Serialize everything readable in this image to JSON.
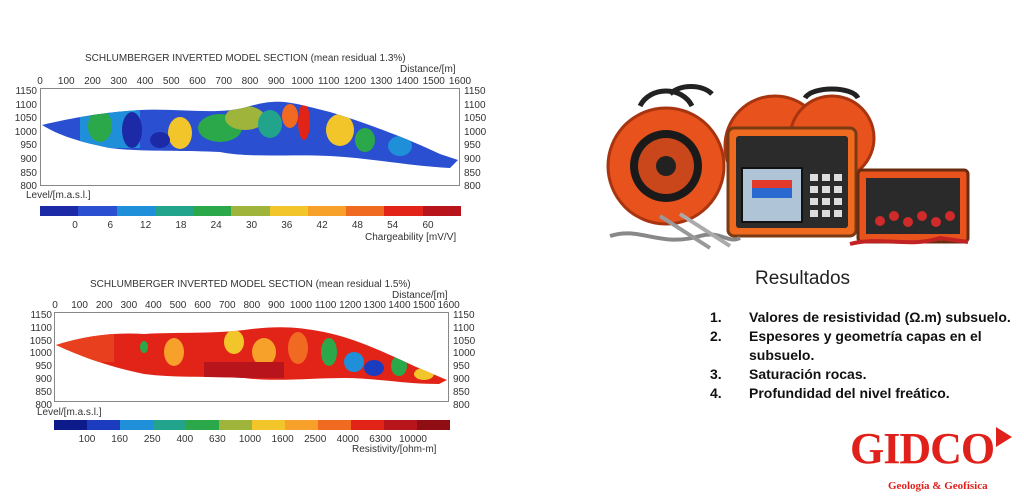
{
  "top_section": {
    "title": "SCHLUMBERGER INVERTED MODEL SECTION (mean residual 1.3%)",
    "distance_label": "Distance/[m]",
    "x_ticks": [
      "0",
      "100",
      "200",
      "300",
      "400",
      "500",
      "600",
      "700",
      "800",
      "900",
      "1000",
      "1100",
      "1200",
      "1300",
      "1400",
      "1500",
      "1600"
    ],
    "y_ticks": [
      "1150",
      "1100",
      "1050",
      "1000",
      "950",
      "900",
      "850",
      "800"
    ],
    "level_label": "Level/[m.a.s.l.]",
    "scale_ticks": [
      "0",
      "6",
      "12",
      "18",
      "24",
      "30",
      "36",
      "42",
      "48",
      "54",
      "60"
    ],
    "scale_label": "Chargeability [mV/V]",
    "colors": [
      "#1c2aa8",
      "#2a4fd0",
      "#1e8fd8",
      "#22a48c",
      "#2aa84a",
      "#9fb43a",
      "#f2c52a",
      "#f7a02a",
      "#f06a22",
      "#e22418",
      "#b8141c"
    ]
  },
  "bottom_section": {
    "title": "SCHLUMBERGER INVERTED MODEL SECTION (mean residual 1.5%)",
    "distance_label": "Distance/[m]",
    "x_ticks": [
      "0",
      "100",
      "200",
      "300",
      "400",
      "500",
      "600",
      "700",
      "800",
      "900",
      "1000",
      "1100",
      "1200",
      "1300",
      "1400",
      "1500",
      "1600"
    ],
    "y_ticks": [
      "1150",
      "1100",
      "1050",
      "1000",
      "950",
      "900",
      "850",
      "800"
    ],
    "level_label": "Level/[m.a.s.l.]",
    "scale_ticks": [
      "100",
      "160",
      "250",
      "400",
      "630",
      "1000",
      "1600",
      "2500",
      "4000",
      "6300",
      "10000"
    ],
    "scale_label": "Resistivity/[ohm-m]",
    "colors": [
      "#0c1a8a",
      "#1c3cc0",
      "#1e8fd8",
      "#22a48c",
      "#2aa84a",
      "#9fb43a",
      "#f2c52a",
      "#f7a02a",
      "#f06a22",
      "#e22418",
      "#b8141c",
      "#8e0e14"
    ]
  },
  "equipment": {
    "icon": "resistivity-meter-equipment-icon"
  },
  "results": {
    "title": "Resultados",
    "items": [
      {
        "num": "1.",
        "text": "Valores de resistividad (Ω.m) subsuelo."
      },
      {
        "num": "2.",
        "text": "Espesores y geometría capas en el subsuelo."
      },
      {
        "num": "3.",
        "text": "Saturación rocas."
      },
      {
        "num": "4.",
        "text": "Profundidad del nivel freático."
      }
    ]
  },
  "logo": {
    "word": "GIDCO",
    "subtitle": "Geología & Geofísica",
    "color": "#e0201b"
  }
}
